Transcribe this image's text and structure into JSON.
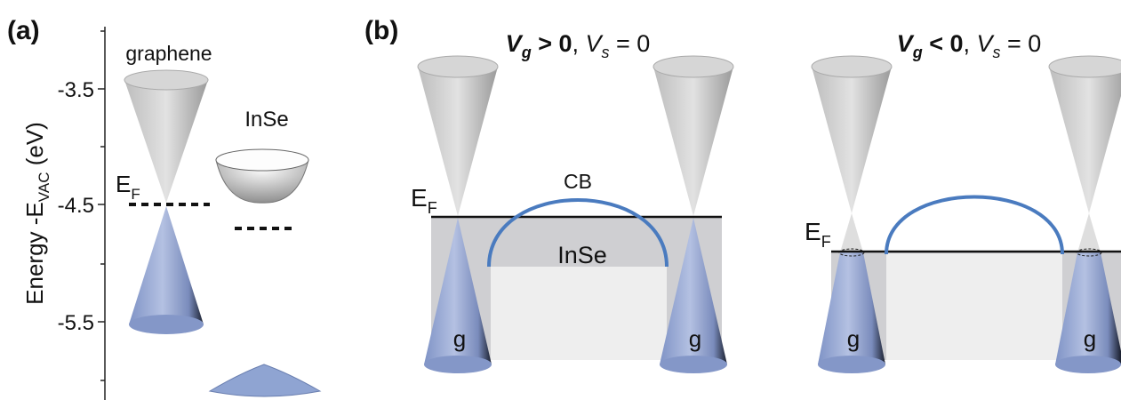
{
  "panel_a": {
    "label": "(a)",
    "axis_label": {
      "main": "Energy -E",
      "sub": "VAC",
      "unit": " (eV)"
    },
    "ticks": [
      "-3.5",
      "-4.5",
      "-5.5"
    ],
    "graphene": "graphene",
    "inse": "InSe",
    "ef": {
      "main": "E",
      "sub": "F"
    }
  },
  "panel_b": {
    "label": "(b)",
    "left": {
      "title": {
        "v1": "V",
        "s1": "g",
        "rel1": " > 0",
        "sep": ", ",
        "v2": "V",
        "s2": "s",
        "rel2": " = 0"
      },
      "ef": {
        "main": "E",
        "sub": "F"
      },
      "cb": "CB",
      "inse": "InSe",
      "g": [
        "g",
        "g"
      ]
    },
    "right": {
      "title": {
        "v1": "V",
        "s1": "g",
        "rel1": " < 0",
        "sep": ", ",
        "v2": "V",
        "s2": "s",
        "rel2": " = 0"
      },
      "ef": {
        "main": "E",
        "sub": "F"
      },
      "g": [
        "g",
        "g"
      ]
    }
  }
}
